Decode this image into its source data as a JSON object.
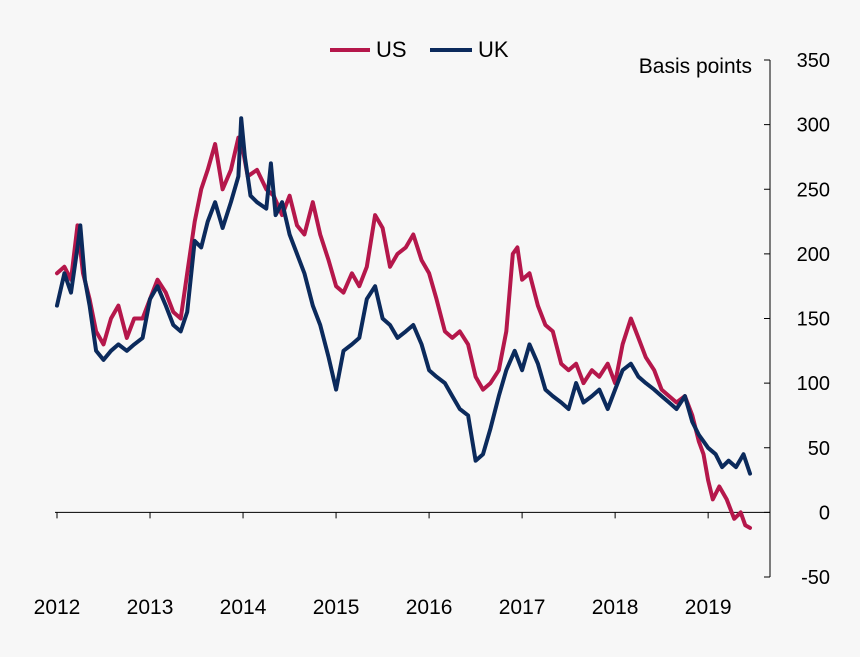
{
  "chart_data": {
    "type": "line",
    "title": "",
    "ylabel": "Basis points",
    "xlabel": "",
    "ylim": [
      -50,
      350
    ],
    "yticks": [
      -50,
      0,
      50,
      100,
      150,
      200,
      250,
      300,
      350
    ],
    "x_tick_labels": [
      "2012",
      "2013",
      "2014",
      "2015",
      "2016",
      "2017",
      "2018",
      "2019"
    ],
    "xlim": [
      2012.0,
      2019.45
    ],
    "legend_position": "top-center",
    "grid": false,
    "series": [
      {
        "name": "US",
        "color": "#b5174b",
        "points": [
          [
            2012.0,
            185
          ],
          [
            2012.08,
            190
          ],
          [
            2012.15,
            180
          ],
          [
            2012.22,
            222
          ],
          [
            2012.28,
            185
          ],
          [
            2012.35,
            165
          ],
          [
            2012.42,
            140
          ],
          [
            2012.5,
            130
          ],
          [
            2012.58,
            150
          ],
          [
            2012.66,
            160
          ],
          [
            2012.75,
            135
          ],
          [
            2012.83,
            150
          ],
          [
            2012.92,
            150
          ],
          [
            2013.0,
            165
          ],
          [
            2013.08,
            180
          ],
          [
            2013.17,
            170
          ],
          [
            2013.25,
            155
          ],
          [
            2013.33,
            150
          ],
          [
            2013.4,
            185
          ],
          [
            2013.48,
            225
          ],
          [
            2013.55,
            250
          ],
          [
            2013.62,
            265
          ],
          [
            2013.7,
            285
          ],
          [
            2013.78,
            250
          ],
          [
            2013.87,
            265
          ],
          [
            2013.95,
            290
          ],
          [
            2014.0,
            280
          ],
          [
            2014.05,
            260
          ],
          [
            2014.15,
            265
          ],
          [
            2014.25,
            250
          ],
          [
            2014.33,
            245
          ],
          [
            2014.42,
            230
          ],
          [
            2014.5,
            245
          ],
          [
            2014.58,
            222
          ],
          [
            2014.66,
            215
          ],
          [
            2014.75,
            240
          ],
          [
            2014.83,
            215
          ],
          [
            2014.92,
            195
          ],
          [
            2015.0,
            175
          ],
          [
            2015.08,
            170
          ],
          [
            2015.17,
            185
          ],
          [
            2015.25,
            175
          ],
          [
            2015.33,
            190
          ],
          [
            2015.42,
            230
          ],
          [
            2015.5,
            220
          ],
          [
            2015.58,
            190
          ],
          [
            2015.66,
            200
          ],
          [
            2015.75,
            205
          ],
          [
            2015.83,
            215
          ],
          [
            2015.92,
            195
          ],
          [
            2016.0,
            185
          ],
          [
            2016.08,
            165
          ],
          [
            2016.17,
            140
          ],
          [
            2016.25,
            135
          ],
          [
            2016.33,
            140
          ],
          [
            2016.42,
            130
          ],
          [
            2016.5,
            105
          ],
          [
            2016.58,
            95
          ],
          [
            2016.66,
            100
          ],
          [
            2016.75,
            110
          ],
          [
            2016.83,
            140
          ],
          [
            2016.9,
            200
          ],
          [
            2016.95,
            205
          ],
          [
            2017.0,
            180
          ],
          [
            2017.08,
            185
          ],
          [
            2017.17,
            160
          ],
          [
            2017.25,
            145
          ],
          [
            2017.33,
            140
          ],
          [
            2017.42,
            115
          ],
          [
            2017.5,
            110
          ],
          [
            2017.58,
            115
          ],
          [
            2017.66,
            100
          ],
          [
            2017.75,
            110
          ],
          [
            2017.83,
            105
          ],
          [
            2017.92,
            115
          ],
          [
            2018.0,
            100
          ],
          [
            2018.08,
            130
          ],
          [
            2018.17,
            150
          ],
          [
            2018.25,
            135
          ],
          [
            2018.33,
            120
          ],
          [
            2018.42,
            110
          ],
          [
            2018.5,
            95
          ],
          [
            2018.58,
            90
          ],
          [
            2018.66,
            85
          ],
          [
            2018.75,
            90
          ],
          [
            2018.83,
            75
          ],
          [
            2018.9,
            55
          ],
          [
            2018.95,
            45
          ],
          [
            2019.0,
            25
          ],
          [
            2019.05,
            10
          ],
          [
            2019.12,
            20
          ],
          [
            2019.2,
            10
          ],
          [
            2019.28,
            -5
          ],
          [
            2019.35,
            0
          ],
          [
            2019.4,
            -10
          ],
          [
            2019.45,
            -12
          ]
        ]
      },
      {
        "name": "UK",
        "color": "#0b2a5c",
        "points": [
          [
            2012.0,
            160
          ],
          [
            2012.08,
            185
          ],
          [
            2012.15,
            170
          ],
          [
            2012.22,
            205
          ],
          [
            2012.25,
            222
          ],
          [
            2012.3,
            180
          ],
          [
            2012.35,
            160
          ],
          [
            2012.42,
            125
          ],
          [
            2012.5,
            118
          ],
          [
            2012.58,
            125
          ],
          [
            2012.66,
            130
          ],
          [
            2012.75,
            125
          ],
          [
            2012.83,
            130
          ],
          [
            2012.92,
            135
          ],
          [
            2013.0,
            165
          ],
          [
            2013.08,
            175
          ],
          [
            2013.17,
            160
          ],
          [
            2013.25,
            145
          ],
          [
            2013.33,
            140
          ],
          [
            2013.4,
            155
          ],
          [
            2013.48,
            210
          ],
          [
            2013.55,
            205
          ],
          [
            2013.62,
            225
          ],
          [
            2013.7,
            240
          ],
          [
            2013.78,
            220
          ],
          [
            2013.87,
            240
          ],
          [
            2013.95,
            260
          ],
          [
            2013.98,
            305
          ],
          [
            2014.02,
            275
          ],
          [
            2014.08,
            245
          ],
          [
            2014.15,
            240
          ],
          [
            2014.25,
            235
          ],
          [
            2014.3,
            270
          ],
          [
            2014.35,
            230
          ],
          [
            2014.42,
            240
          ],
          [
            2014.5,
            215
          ],
          [
            2014.58,
            200
          ],
          [
            2014.66,
            185
          ],
          [
            2014.75,
            160
          ],
          [
            2014.83,
            145
          ],
          [
            2014.92,
            120
          ],
          [
            2015.0,
            95
          ],
          [
            2015.08,
            125
          ],
          [
            2015.17,
            130
          ],
          [
            2015.25,
            135
          ],
          [
            2015.33,
            165
          ],
          [
            2015.42,
            175
          ],
          [
            2015.5,
            150
          ],
          [
            2015.58,
            145
          ],
          [
            2015.66,
            135
          ],
          [
            2015.75,
            140
          ],
          [
            2015.83,
            145
          ],
          [
            2015.92,
            130
          ],
          [
            2016.0,
            110
          ],
          [
            2016.08,
            105
          ],
          [
            2016.17,
            100
          ],
          [
            2016.25,
            90
          ],
          [
            2016.33,
            80
          ],
          [
            2016.42,
            75
          ],
          [
            2016.5,
            40
          ],
          [
            2016.58,
            45
          ],
          [
            2016.66,
            65
          ],
          [
            2016.75,
            90
          ],
          [
            2016.83,
            110
          ],
          [
            2016.92,
            125
          ],
          [
            2017.0,
            110
          ],
          [
            2017.08,
            130
          ],
          [
            2017.17,
            115
          ],
          [
            2017.25,
            95
          ],
          [
            2017.33,
            90
          ],
          [
            2017.42,
            85
          ],
          [
            2017.5,
            80
          ],
          [
            2017.58,
            100
          ],
          [
            2017.66,
            85
          ],
          [
            2017.75,
            90
          ],
          [
            2017.83,
            95
          ],
          [
            2017.92,
            80
          ],
          [
            2018.0,
            95
          ],
          [
            2018.08,
            110
          ],
          [
            2018.17,
            115
          ],
          [
            2018.25,
            105
          ],
          [
            2018.33,
            100
          ],
          [
            2018.42,
            95
          ],
          [
            2018.5,
            90
          ],
          [
            2018.58,
            85
          ],
          [
            2018.66,
            80
          ],
          [
            2018.75,
            90
          ],
          [
            2018.83,
            70
          ],
          [
            2018.9,
            60
          ],
          [
            2018.95,
            55
          ],
          [
            2019.0,
            50
          ],
          [
            2019.08,
            45
          ],
          [
            2019.15,
            35
          ],
          [
            2019.22,
            40
          ],
          [
            2019.3,
            35
          ],
          [
            2019.38,
            45
          ],
          [
            2019.45,
            30
          ]
        ]
      }
    ]
  }
}
